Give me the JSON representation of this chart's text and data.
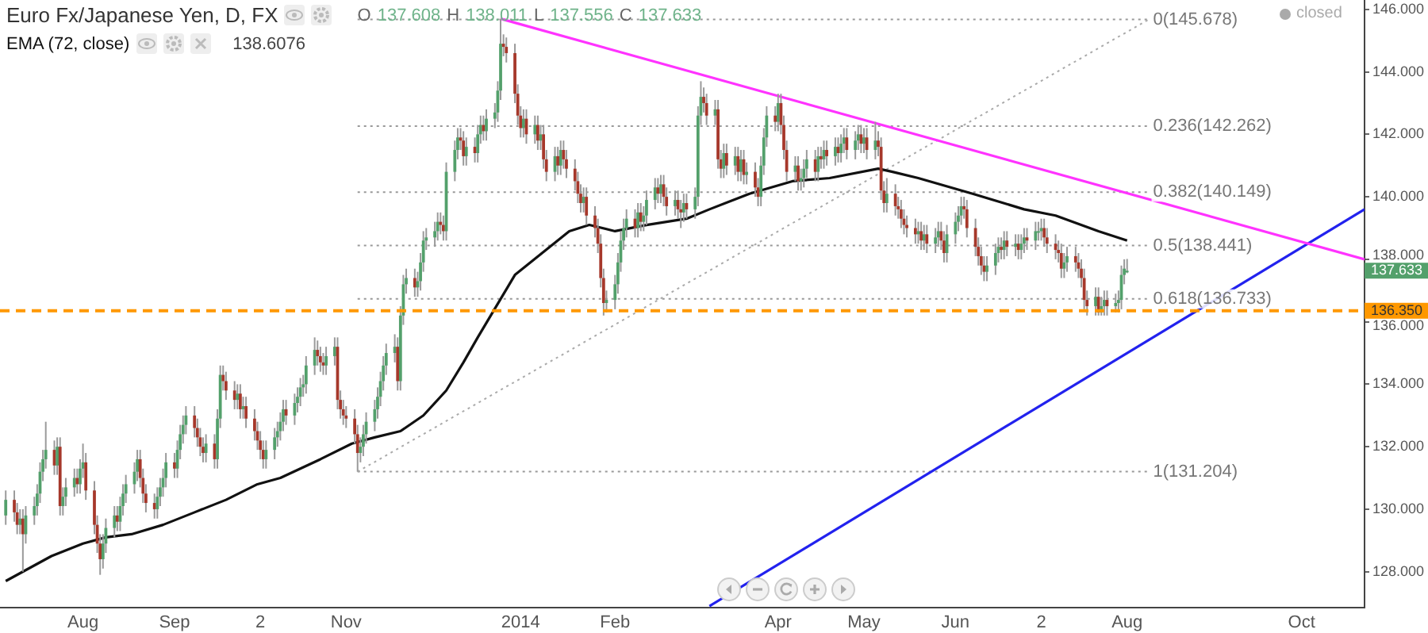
{
  "chart_data": {
    "type": "candlestick",
    "title": "Euro Fx/Japanese Yen, D, FX",
    "subtitle": "O 137.608 H 138.011 L 137.556 C 137.633",
    "annotations": [
      "138.6076",
      "closed",
      "137.633"
    ],
    "legend": "top left",
    "x": [
      "2013-07-05",
      "2013-07-08",
      "2013-07-09",
      "2013-07-10",
      "2013-07-11",
      "2013-07-12",
      "2013-07-15",
      "2013-07-16",
      "2013-07-17",
      "2013-07-18",
      "2013-07-19",
      "2013-07-22",
      "2013-07-23",
      "2013-07-24",
      "2013-07-25",
      "2013-07-26",
      "2013-07-29",
      "2013-07-30",
      "2013-07-31",
      "2013-08-01",
      "2013-08-02",
      "2013-08-05",
      "2013-08-06",
      "2013-08-07",
      "2013-08-08",
      "2013-08-09",
      "2013-08-12",
      "2013-08-13",
      "2013-08-14",
      "2013-08-15",
      "2013-08-16",
      "2013-08-19",
      "2013-08-20",
      "2013-08-21",
      "2013-08-22",
      "2013-08-23",
      "2013-08-26",
      "2013-08-27",
      "2013-08-28",
      "2013-08-29",
      "2013-08-30",
      "2013-09-02",
      "2013-09-03",
      "2013-09-04",
      "2013-09-05",
      "2013-09-06",
      "2013-09-09",
      "2013-09-10",
      "2013-09-11",
      "2013-09-12",
      "2013-09-13",
      "2013-09-16",
      "2013-09-17",
      "2013-09-18",
      "2013-09-19",
      "2013-09-20",
      "2013-09-23",
      "2013-09-24",
      "2013-09-25",
      "2013-09-26",
      "2013-09-27",
      "2013-09-30",
      "2013-10-01",
      "2013-10-02",
      "2013-10-03",
      "2013-10-04",
      "2013-10-07",
      "2013-10-08",
      "2013-10-09",
      "2013-10-10",
      "2013-10-11",
      "2013-10-14",
      "2013-10-15",
      "2013-10-16",
      "2013-10-17",
      "2013-10-18",
      "2013-10-21",
      "2013-10-22",
      "2013-10-23",
      "2013-10-24",
      "2013-10-25",
      "2013-10-28",
      "2013-10-29",
      "2013-10-30",
      "2013-10-31",
      "2013-11-01",
      "2013-11-04",
      "2013-11-05",
      "2013-11-06",
      "2013-11-07",
      "2013-11-08",
      "2013-11-11",
      "2013-11-12",
      "2013-11-13",
      "2013-11-14",
      "2013-11-15",
      "2013-11-18",
      "2013-11-19",
      "2013-11-20",
      "2013-11-21",
      "2013-11-22",
      "2013-11-25",
      "2013-11-26",
      "2013-11-27",
      "2013-11-28",
      "2013-11-29",
      "2013-12-02",
      "2013-12-03",
      "2013-12-04",
      "2013-12-05",
      "2013-12-06",
      "2013-12-09",
      "2013-12-10",
      "2013-12-11",
      "2013-12-12",
      "2013-12-13",
      "2013-12-16",
      "2013-12-17",
      "2013-12-18",
      "2013-12-19",
      "2013-12-20",
      "2013-12-23",
      "2013-12-24",
      "2013-12-25",
      "2013-12-26",
      "2013-12-27",
      "2013-12-30",
      "2013-12-31",
      "2014-01-01",
      "2014-01-02",
      "2014-01-03",
      "2014-01-06",
      "2014-01-07",
      "2014-01-08",
      "2014-01-09",
      "2014-01-10",
      "2014-01-13",
      "2014-01-14",
      "2014-01-15",
      "2014-01-16",
      "2014-01-17",
      "2014-01-20",
      "2014-01-21",
      "2014-01-22",
      "2014-01-23",
      "2014-01-24",
      "2014-01-27",
      "2014-01-28",
      "2014-01-29",
      "2014-01-30",
      "2014-01-31",
      "2014-02-03",
      "2014-02-04",
      "2014-02-05",
      "2014-02-06",
      "2014-02-07",
      "2014-02-10",
      "2014-02-11",
      "2014-02-12",
      "2014-02-13",
      "2014-02-14",
      "2014-02-17",
      "2014-02-18",
      "2014-02-19",
      "2014-02-20",
      "2014-02-21",
      "2014-02-24",
      "2014-02-25",
      "2014-02-26",
      "2014-02-27",
      "2014-02-28",
      "2014-03-03",
      "2014-03-04",
      "2014-03-05",
      "2014-03-06",
      "2014-03-07",
      "2014-03-10",
      "2014-03-11",
      "2014-03-12",
      "2014-03-13",
      "2014-03-14",
      "2014-03-17",
      "2014-03-18",
      "2014-03-19",
      "2014-03-20",
      "2014-03-21",
      "2014-03-24",
      "2014-03-25",
      "2014-03-26",
      "2014-03-27",
      "2014-03-28",
      "2014-03-31",
      "2014-04-01",
      "2014-04-02",
      "2014-04-03",
      "2014-04-04",
      "2014-04-07",
      "2014-04-08",
      "2014-04-09",
      "2014-04-10",
      "2014-04-11",
      "2014-04-14",
      "2014-04-15",
      "2014-04-16",
      "2014-04-17",
      "2014-04-18",
      "2014-04-21",
      "2014-04-22",
      "2014-04-23",
      "2014-04-24",
      "2014-04-25",
      "2014-04-28",
      "2014-04-29",
      "2014-04-30",
      "2014-05-01",
      "2014-05-02",
      "2014-05-05",
      "2014-05-06",
      "2014-05-07",
      "2014-05-08",
      "2014-05-09",
      "2014-05-12",
      "2014-05-13",
      "2014-05-14",
      "2014-05-15",
      "2014-05-16",
      "2014-05-19",
      "2014-05-20",
      "2014-05-21",
      "2014-05-22",
      "2014-05-23",
      "2014-05-26",
      "2014-05-27",
      "2014-05-28",
      "2014-05-29",
      "2014-05-30",
      "2014-06-02",
      "2014-06-03",
      "2014-06-04",
      "2014-06-05",
      "2014-06-06",
      "2014-06-09",
      "2014-06-10",
      "2014-06-11",
      "2014-06-12",
      "2014-06-13",
      "2014-06-16",
      "2014-06-17",
      "2014-06-18",
      "2014-06-19",
      "2014-06-20",
      "2014-06-23",
      "2014-06-24",
      "2014-06-25",
      "2014-06-26",
      "2014-06-27",
      "2014-06-30",
      "2014-07-01",
      "2014-07-02",
      "2014-07-03",
      "2014-07-04",
      "2014-07-07",
      "2014-07-08",
      "2014-07-09",
      "2014-07-10",
      "2014-07-11",
      "2014-07-14",
      "2014-07-15",
      "2014-07-16",
      "2014-07-17",
      "2014-07-18",
      "2014-07-21",
      "2014-07-22",
      "2014-07-23",
      "2014-07-24",
      "2014-07-25",
      "2014-07-28",
      "2014-07-29",
      "2014-07-30",
      "2014-07-31",
      "2014-08-01"
    ],
    "ohlc": [
      [
        129.8,
        130.6,
        129.5,
        130.3
      ],
      [
        130.3,
        130.6,
        129.6,
        129.9
      ],
      [
        129.9,
        130.2,
        129.2,
        129.5
      ],
      [
        129.5,
        130.0,
        129.2,
        129.7
      ],
      [
        129.7,
        130.0,
        128.0,
        129.2
      ],
      [
        129.2,
        130.1,
        128.9,
        129.8
      ],
      [
        129.8,
        130.4,
        129.5,
        130.1
      ],
      [
        130.1,
        130.8,
        129.8,
        130.5
      ],
      [
        130.5,
        131.5,
        130.2,
        131.2
      ],
      [
        131.2,
        131.9,
        130.9,
        131.6
      ],
      [
        131.6,
        132.8,
        131.3,
        131.9
      ],
      [
        131.9,
        132.2,
        131.1,
        131.4
      ],
      [
        131.4,
        132.3,
        131.1,
        132.0
      ],
      [
        132.0,
        132.3,
        129.8,
        130.1
      ],
      [
        130.1,
        130.7,
        129.8,
        130.4
      ],
      [
        130.4,
        131.0,
        130.1,
        130.7
      ],
      [
        130.7,
        131.3,
        130.4,
        131.0
      ],
      [
        131.0,
        131.3,
        130.5,
        130.8
      ],
      [
        130.8,
        131.6,
        130.5,
        131.3
      ],
      [
        131.3,
        132.1,
        131.0,
        131.5
      ],
      [
        131.5,
        131.8,
        130.3,
        130.6
      ],
      [
        130.6,
        130.9,
        129.2,
        129.5
      ],
      [
        129.5,
        129.8,
        128.6,
        128.9
      ],
      [
        128.9,
        129.2,
        127.9,
        128.4
      ],
      [
        128.4,
        129.2,
        128.1,
        128.9
      ],
      [
        128.9,
        129.7,
        128.6,
        129.4
      ],
      [
        129.4,
        130.1,
        129.1,
        129.8
      ],
      [
        129.8,
        130.1,
        129.3,
        129.6
      ],
      [
        129.6,
        130.4,
        129.3,
        130.1
      ],
      [
        130.1,
        130.8,
        129.8,
        130.5
      ],
      [
        130.5,
        131.1,
        130.2,
        130.8
      ],
      [
        130.8,
        131.5,
        130.5,
        131.2
      ],
      [
        131.2,
        131.9,
        130.9,
        131.6
      ],
      [
        131.6,
        131.9,
        130.7,
        131.0
      ],
      [
        131.0,
        131.3,
        130.2,
        130.5
      ],
      [
        130.5,
        130.8,
        129.9,
        130.2
      ],
      [
        130.2,
        130.5,
        129.7,
        130.0
      ],
      [
        130.0,
        130.7,
        129.7,
        130.4
      ],
      [
        130.4,
        131.0,
        130.1,
        130.7
      ],
      [
        130.7,
        131.3,
        130.4,
        131.0
      ],
      [
        131.0,
        131.8,
        130.7,
        131.5
      ],
      [
        131.5,
        131.8,
        131.0,
        131.3
      ],
      [
        131.3,
        132.2,
        131.0,
        131.9
      ],
      [
        131.9,
        132.7,
        131.6,
        132.4
      ],
      [
        132.4,
        133.0,
        132.1,
        132.7
      ],
      [
        132.7,
        133.3,
        132.4,
        133.0
      ],
      [
        133.0,
        133.3,
        132.3,
        132.6
      ],
      [
        132.6,
        132.9,
        132.0,
        132.3
      ],
      [
        132.3,
        132.6,
        131.7,
        132.0
      ],
      [
        132.0,
        132.3,
        131.5,
        131.8
      ],
      [
        131.8,
        132.4,
        131.5,
        132.1
      ],
      [
        132.1,
        132.4,
        131.3,
        131.6
      ],
      [
        131.6,
        133.2,
        131.3,
        132.9
      ],
      [
        132.9,
        134.6,
        132.6,
        134.3
      ],
      [
        134.3,
        134.6,
        133.8,
        134.1
      ],
      [
        134.1,
        134.4,
        133.5,
        133.8
      ],
      [
        133.8,
        134.1,
        133.2,
        133.5
      ],
      [
        133.5,
        134.0,
        133.2,
        133.7
      ],
      [
        133.7,
        134.0,
        132.9,
        133.2
      ],
      [
        133.2,
        133.6,
        132.9,
        133.3
      ],
      [
        133.3,
        133.6,
        132.6,
        132.9
      ],
      [
        132.9,
        133.2,
        132.2,
        132.5
      ],
      [
        132.5,
        132.8,
        131.9,
        132.2
      ],
      [
        132.2,
        132.5,
        131.6,
        131.9
      ],
      [
        131.9,
        132.2,
        131.3,
        131.6
      ],
      [
        131.6,
        132.2,
        131.3,
        131.9
      ],
      [
        131.9,
        132.6,
        131.6,
        132.3
      ],
      [
        132.3,
        132.8,
        132.0,
        132.5
      ],
      [
        132.5,
        133.1,
        132.2,
        132.8
      ],
      [
        132.8,
        133.5,
        132.5,
        133.2
      ],
      [
        133.2,
        133.5,
        132.7,
        133.0
      ],
      [
        133.0,
        133.7,
        132.7,
        133.4
      ],
      [
        133.4,
        133.9,
        133.1,
        133.6
      ],
      [
        133.6,
        134.2,
        133.3,
        133.9
      ],
      [
        133.9,
        134.3,
        133.6,
        134.0
      ],
      [
        134.0,
        134.9,
        133.7,
        134.6
      ],
      [
        134.6,
        135.5,
        134.3,
        135.1
      ],
      [
        135.1,
        135.4,
        134.6,
        134.9
      ],
      [
        134.9,
        135.2,
        134.4,
        134.7
      ],
      [
        134.7,
        135.0,
        134.3,
        134.6
      ],
      [
        134.6,
        135.2,
        134.3,
        134.9
      ],
      [
        134.9,
        135.5,
        134.6,
        135.2
      ],
      [
        135.2,
        135.5,
        133.2,
        133.5
      ],
      [
        133.5,
        133.8,
        132.9,
        133.2
      ],
      [
        133.2,
        133.5,
        132.7,
        133.0
      ],
      [
        133.0,
        133.3,
        132.6,
        132.9
      ],
      [
        132.9,
        133.2,
        132.1,
        132.4
      ],
      [
        132.4,
        132.7,
        131.2,
        131.8
      ],
      [
        131.8,
        132.3,
        131.5,
        132.0
      ],
      [
        132.0,
        132.7,
        131.7,
        132.4
      ],
      [
        132.4,
        133.1,
        132.1,
        132.8
      ],
      [
        132.8,
        133.5,
        132.5,
        133.2
      ],
      [
        133.2,
        133.9,
        132.9,
        133.6
      ],
      [
        133.6,
        134.4,
        133.3,
        134.1
      ],
      [
        134.1,
        134.9,
        133.8,
        134.6
      ],
      [
        134.6,
        135.3,
        134.3,
        135.0
      ],
      [
        135.0,
        135.6,
        134.7,
        135.2
      ],
      [
        135.2,
        135.5,
        133.8,
        134.1
      ],
      [
        134.1,
        136.5,
        133.8,
        136.2
      ],
      [
        136.2,
        137.5,
        135.9,
        137.2
      ],
      [
        137.2,
        137.7,
        136.9,
        137.4
      ],
      [
        137.4,
        137.7,
        136.8,
        137.1
      ],
      [
        137.1,
        137.6,
        136.8,
        137.3
      ],
      [
        137.3,
        138.2,
        137.0,
        137.9
      ],
      [
        137.9,
        138.9,
        137.6,
        138.6
      ],
      [
        138.6,
        139.0,
        138.3,
        138.7
      ],
      [
        138.7,
        139.2,
        138.4,
        138.9
      ],
      [
        138.9,
        139.5,
        138.6,
        139.2
      ],
      [
        139.2,
        139.5,
        138.8,
        139.1
      ],
      [
        139.1,
        139.4,
        138.6,
        138.9
      ],
      [
        138.9,
        141.1,
        138.6,
        140.8
      ],
      [
        140.8,
        141.8,
        140.5,
        141.5
      ],
      [
        141.5,
        142.2,
        141.2,
        141.9
      ],
      [
        141.9,
        142.2,
        141.5,
        141.8
      ],
      [
        141.8,
        142.1,
        141.0,
        141.3
      ],
      [
        141.3,
        141.9,
        141.0,
        141.6
      ],
      [
        141.6,
        141.9,
        141.1,
        141.4
      ],
      [
        141.4,
        142.3,
        141.1,
        142.0
      ],
      [
        142.0,
        142.6,
        141.7,
        142.3
      ],
      [
        142.3,
        142.6,
        141.8,
        142.1
      ],
      [
        142.1,
        142.8,
        141.8,
        142.5
      ],
      [
        142.5,
        143.0,
        142.2,
        142.7
      ],
      [
        142.7,
        143.7,
        142.4,
        143.4
      ],
      [
        143.4,
        145.7,
        143.1,
        144.9
      ],
      [
        144.9,
        145.2,
        144.5,
        144.8
      ],
      [
        144.8,
        145.1,
        144.3,
        144.6
      ],
      [
        144.6,
        144.9,
        143.0,
        143.3
      ],
      [
        143.3,
        143.6,
        142.3,
        142.6
      ],
      [
        142.6,
        142.9,
        141.9,
        142.2
      ],
      [
        142.2,
        142.8,
        141.9,
        142.5
      ],
      [
        142.5,
        142.8,
        141.7,
        142.0
      ],
      [
        142.0,
        142.6,
        141.7,
        142.3
      ],
      [
        142.3,
        142.6,
        141.5,
        141.8
      ],
      [
        141.8,
        142.3,
        141.5,
        142.0
      ],
      [
        142.0,
        142.3,
        140.9,
        141.2
      ],
      [
        141.2,
        141.5,
        140.5,
        140.8
      ],
      [
        140.8,
        141.6,
        140.5,
        141.3
      ],
      [
        141.3,
        141.6,
        140.7,
        141.0
      ],
      [
        141.0,
        141.8,
        140.7,
        141.5
      ],
      [
        141.5,
        141.8,
        140.9,
        141.2
      ],
      [
        141.2,
        141.5,
        140.6,
        140.9
      ],
      [
        140.9,
        141.2,
        140.2,
        140.5
      ],
      [
        140.5,
        140.8,
        139.8,
        140.1
      ],
      [
        140.1,
        140.4,
        139.5,
        139.8
      ],
      [
        139.8,
        140.3,
        139.5,
        140.0
      ],
      [
        140.0,
        140.3,
        139.1,
        139.4
      ],
      [
        139.4,
        139.7,
        138.7,
        139.0
      ],
      [
        139.0,
        139.3,
        138.2,
        138.5
      ],
      [
        138.5,
        138.8,
        137.1,
        137.4
      ],
      [
        137.4,
        137.7,
        136.2,
        136.6
      ],
      [
        136.6,
        137.0,
        136.3,
        136.7
      ],
      [
        136.7,
        137.5,
        136.4,
        137.2
      ],
      [
        137.2,
        138.2,
        136.9,
        137.9
      ],
      [
        137.9,
        138.9,
        137.6,
        138.6
      ],
      [
        138.6,
        139.3,
        138.3,
        139.0
      ],
      [
        139.0,
        139.6,
        138.7,
        139.3
      ],
      [
        139.3,
        139.6,
        138.7,
        139.0
      ],
      [
        139.0,
        139.8,
        138.7,
        139.5
      ],
      [
        139.5,
        139.8,
        138.9,
        139.2
      ],
      [
        139.2,
        139.7,
        138.9,
        139.4
      ],
      [
        139.4,
        140.2,
        139.1,
        139.9
      ],
      [
        139.9,
        140.6,
        139.6,
        140.3
      ],
      [
        140.3,
        140.6,
        139.8,
        140.1
      ],
      [
        140.1,
        140.7,
        139.8,
        140.4
      ],
      [
        140.4,
        140.7,
        139.7,
        140.0
      ],
      [
        140.0,
        140.3,
        139.4,
        139.7
      ],
      [
        139.7,
        140.2,
        139.4,
        139.9
      ],
      [
        139.9,
        140.2,
        139.3,
        139.6
      ],
      [
        139.6,
        139.9,
        139.0,
        139.5
      ],
      [
        139.5,
        140.1,
        139.2,
        139.8
      ],
      [
        139.8,
        140.1,
        139.3,
        139.6
      ],
      [
        139.6,
        140.3,
        139.3,
        140.0
      ],
      [
        140.0,
        142.9,
        139.7,
        142.6
      ],
      [
        142.6,
        143.7,
        142.3,
        143.2
      ],
      [
        143.2,
        143.5,
        142.7,
        143.0
      ],
      [
        143.0,
        143.3,
        142.3,
        142.6
      ],
      [
        142.6,
        143.1,
        142.3,
        142.8
      ],
      [
        142.8,
        143.1,
        140.9,
        141.2
      ],
      [
        141.2,
        141.5,
        140.6,
        140.9
      ],
      [
        140.9,
        141.7,
        140.6,
        141.4
      ],
      [
        141.4,
        141.7,
        140.7,
        141.0
      ],
      [
        141.0,
        141.6,
        140.7,
        141.3
      ],
      [
        141.3,
        141.6,
        140.5,
        140.8
      ],
      [
        140.8,
        141.5,
        140.5,
        141.2
      ],
      [
        141.2,
        141.5,
        140.4,
        140.7
      ],
      [
        140.7,
        141.1,
        140.4,
        140.8
      ],
      [
        140.8,
        141.1,
        140.0,
        140.3
      ],
      [
        140.3,
        140.6,
        139.7,
        140.0
      ],
      [
        140.0,
        141.3,
        139.7,
        141.0
      ],
      [
        141.0,
        142.2,
        140.7,
        141.9
      ],
      [
        141.9,
        142.9,
        141.6,
        142.6
      ],
      [
        142.6,
        142.9,
        142.1,
        142.4
      ],
      [
        142.4,
        143.3,
        142.1,
        143.0
      ],
      [
        143.0,
        143.3,
        142.0,
        142.3
      ],
      [
        142.3,
        142.6,
        141.2,
        141.5
      ],
      [
        141.5,
        141.8,
        140.5,
        140.8
      ],
      [
        140.8,
        141.3,
        140.5,
        141.0
      ],
      [
        141.0,
        141.3,
        140.2,
        140.5
      ],
      [
        140.5,
        140.9,
        140.2,
        140.6
      ],
      [
        140.6,
        141.2,
        140.3,
        140.9
      ],
      [
        140.9,
        141.5,
        140.6,
        141.2
      ],
      [
        141.2,
        141.5,
        140.5,
        140.8
      ],
      [
        140.8,
        141.6,
        140.5,
        141.3
      ],
      [
        141.3,
        141.6,
        140.9,
        141.2
      ],
      [
        141.2,
        141.8,
        140.9,
        141.5
      ],
      [
        141.5,
        141.8,
        141.0,
        141.3
      ],
      [
        141.3,
        141.9,
        141.0,
        141.6
      ],
      [
        141.6,
        141.9,
        141.1,
        141.4
      ],
      [
        141.4,
        142.0,
        141.1,
        141.7
      ],
      [
        141.7,
        142.2,
        141.4,
        141.9
      ],
      [
        141.9,
        142.2,
        141.2,
        141.5
      ],
      [
        141.5,
        142.1,
        141.2,
        141.8
      ],
      [
        141.8,
        142.3,
        141.5,
        142.0
      ],
      [
        142.0,
        142.3,
        141.4,
        141.7
      ],
      [
        141.7,
        142.2,
        141.4,
        141.9
      ],
      [
        141.9,
        142.2,
        141.2,
        141.5
      ],
      [
        141.5,
        142.4,
        141.2,
        141.8
      ],
      [
        141.8,
        142.1,
        141.3,
        141.6
      ],
      [
        141.6,
        141.9,
        139.9,
        140.2
      ],
      [
        140.2,
        140.5,
        139.5,
        139.8
      ],
      [
        139.8,
        140.6,
        139.5,
        140.1
      ],
      [
        140.1,
        140.4,
        139.4,
        139.7
      ],
      [
        139.7,
        140.0,
        139.3,
        139.6
      ],
      [
        139.6,
        139.9,
        139.0,
        139.3
      ],
      [
        139.3,
        139.6,
        138.8,
        139.1
      ],
      [
        139.1,
        139.4,
        138.7,
        139.0
      ],
      [
        139.0,
        139.3,
        138.5,
        138.8
      ],
      [
        138.8,
        139.2,
        138.5,
        138.9
      ],
      [
        138.9,
        139.2,
        138.3,
        138.6
      ],
      [
        138.6,
        139.1,
        138.3,
        138.8
      ],
      [
        138.8,
        139.1,
        138.2,
        138.5
      ],
      [
        138.5,
        139.0,
        138.2,
        138.7
      ],
      [
        138.7,
        139.2,
        138.4,
        138.9
      ],
      [
        138.9,
        139.2,
        138.3,
        138.6
      ],
      [
        138.6,
        138.9,
        137.9,
        138.2
      ],
      [
        138.2,
        139.1,
        137.9,
        138.8
      ],
      [
        138.8,
        139.5,
        138.5,
        139.2
      ],
      [
        139.2,
        139.7,
        138.9,
        139.4
      ],
      [
        139.4,
        140.0,
        139.1,
        139.7
      ],
      [
        139.7,
        140.0,
        139.3,
        139.6
      ],
      [
        139.6,
        139.9,
        138.7,
        139.0
      ],
      [
        139.0,
        139.3,
        138.1,
        138.4
      ],
      [
        138.4,
        138.7,
        137.8,
        138.1
      ],
      [
        138.1,
        138.4,
        137.5,
        137.8
      ],
      [
        137.8,
        138.1,
        137.3,
        137.6
      ],
      [
        137.6,
        138.1,
        137.3,
        137.8
      ],
      [
        137.8,
        138.5,
        137.5,
        138.2
      ],
      [
        138.2,
        138.7,
        137.9,
        138.4
      ],
      [
        138.4,
        138.7,
        138.0,
        138.3
      ],
      [
        138.3,
        138.9,
        138.0,
        138.6
      ],
      [
        138.6,
        138.9,
        138.1,
        138.4
      ],
      [
        138.4,
        138.8,
        138.1,
        138.5
      ],
      [
        138.5,
        138.8,
        138.0,
        138.3
      ],
      [
        138.3,
        138.8,
        138.0,
        138.5
      ],
      [
        138.5,
        139.0,
        138.2,
        138.7
      ],
      [
        138.7,
        139.0,
        138.3,
        138.6
      ],
      [
        138.6,
        139.2,
        138.3,
        138.9
      ],
      [
        138.9,
        139.2,
        138.6,
        138.9
      ],
      [
        138.9,
        139.3,
        138.6,
        139.0
      ],
      [
        139.0,
        139.3,
        138.4,
        138.7
      ],
      [
        138.7,
        139.0,
        138.2,
        138.5
      ],
      [
        138.5,
        138.8,
        138.0,
        138.3
      ],
      [
        138.3,
        138.6,
        137.9,
        138.2
      ],
      [
        138.2,
        138.5,
        137.4,
        137.7
      ],
      [
        137.7,
        138.2,
        137.4,
        137.9
      ],
      [
        137.9,
        138.4,
        137.6,
        138.1
      ],
      [
        138.1,
        138.4,
        137.6,
        137.9
      ],
      [
        137.9,
        138.2,
        137.4,
        137.7
      ],
      [
        137.7,
        138.0,
        137.1,
        137.4
      ],
      [
        137.4,
        137.7,
        136.4,
        136.7
      ],
      [
        136.7,
        137.0,
        136.2,
        136.5
      ],
      [
        136.5,
        137.1,
        136.2,
        136.8
      ],
      [
        136.8,
        137.1,
        136.2,
        136.3
      ],
      [
        136.3,
        136.8,
        136.2,
        136.5
      ],
      [
        136.5,
        137.0,
        136.2,
        136.7
      ],
      [
        136.7,
        137.0,
        136.2,
        136.5
      ],
      [
        136.5,
        136.9,
        136.3,
        136.6
      ],
      [
        136.6,
        137.0,
        136.3,
        136.7
      ],
      [
        136.7,
        137.8,
        136.4,
        137.5
      ],
      [
        137.5,
        138.0,
        137.2,
        137.7
      ],
      [
        137.608,
        138.011,
        137.556,
        137.633
      ]
    ],
    "series": [
      {
        "name": "EMA (72, close)",
        "type": "line",
        "color": "#111111",
        "x": [
          "2013-07-05",
          "2013-07-21",
          "2013-08-01",
          "2013-08-09",
          "2013-08-18",
          "2013-08-29",
          "2013-09-09",
          "2013-09-20",
          "2013-10-01",
          "2013-10-09",
          "2013-10-23",
          "2013-11-03",
          "2013-11-11",
          "2013-11-20",
          "2013-11-28",
          "2013-12-06",
          "2013-12-12",
          "2013-12-17",
          "2013-12-30",
          "2014-01-18",
          "2014-01-25",
          "2014-02-03",
          "2014-02-14",
          "2014-02-28",
          "2014-03-08",
          "2014-03-22",
          "2014-04-06",
          "2014-04-19",
          "2014-05-06",
          "2014-05-11",
          "2014-05-20",
          "2014-06-08",
          "2014-06-26",
          "2014-07-07",
          "2014-07-22",
          "2014-08-01"
        ],
        "values": [
          127.7,
          128.5,
          128.9,
          129.1,
          129.2,
          129.5,
          129.9,
          130.3,
          130.8,
          131.0,
          131.6,
          132.1,
          132.3,
          132.5,
          133.0,
          133.8,
          134.7,
          135.5,
          137.5,
          138.9,
          139.1,
          138.9,
          139.1,
          139.3,
          139.6,
          140.1,
          140.5,
          140.6,
          140.9,
          140.8,
          140.6,
          140.1,
          139.6,
          139.4,
          138.9,
          138.6
        ]
      },
      {
        "type": "line",
        "color": "#ff33ff",
        "x": [
          "2013-12-25",
          "2014-10-23"
        ],
        "values": [
          145.7,
          138.0
        ]
      },
      {
        "type": "line",
        "color": "#2222ee",
        "x": [
          "2014-03-08",
          "2014-10-23"
        ],
        "values": [
          126.9,
          139.6
        ]
      },
      {
        "type": "line",
        "color": "#aaaaaa",
        "line_style": "dotted",
        "x": [
          "2013-11-05",
          "2014-08-09"
        ],
        "values": [
          131.2,
          145.7
        ]
      },
      {
        "name": "0(145.678)",
        "type": "line",
        "color": "#999999",
        "line_style": "dotted",
        "x": [
          "2013-11-05",
          "2014-08-09"
        ],
        "values": [
          145.678,
          145.678
        ]
      },
      {
        "name": "0.236(142.262)",
        "type": "line",
        "color": "#999999",
        "line_style": "dotted",
        "x": [
          "2013-11-05",
          "2014-08-09"
        ],
        "values": [
          142.262,
          142.262
        ]
      },
      {
        "name": "0.382(140.149)",
        "type": "line",
        "color": "#999999",
        "line_style": "dotted",
        "x": [
          "2013-11-05",
          "2014-08-09"
        ],
        "values": [
          140.149,
          140.149
        ]
      },
      {
        "name": "0.5(138.441)",
        "type": "line",
        "color": "#999999",
        "line_style": "dotted",
        "x": [
          "2013-11-05",
          "2014-08-09"
        ],
        "values": [
          138.441,
          138.441
        ]
      },
      {
        "name": "0.618(136.733)",
        "type": "line",
        "color": "#999999",
        "line_style": "dotted",
        "x": [
          "2013-11-05",
          "2014-08-09"
        ],
        "values": [
          136.733,
          136.733
        ]
      },
      {
        "name": "1(131.204)",
        "type": "line",
        "color": "#999999",
        "line_style": "dotted",
        "x": [
          "2013-11-05",
          "2014-08-09"
        ],
        "values": [
          131.204,
          131.204
        ]
      }
    ],
    "ref_lines": [
      {
        "axis": "y",
        "value": 136.35,
        "label": "136.350",
        "color": "#ff9800",
        "line_style": "dashed"
      }
    ],
    "xlim": [
      "2013-07-03",
      "2014-10-23"
    ],
    "xticks": [
      {
        "value": "2013-08-01",
        "label": "Aug"
      },
      {
        "value": "2013-09-02",
        "label": "Sep"
      },
      {
        "value": "2013-10-02",
        "label": "2"
      },
      {
        "value": "2013-11-01",
        "label": "Nov"
      },
      {
        "value": "2014-01-01",
        "label": "2014"
      },
      {
        "value": "2014-02-03",
        "label": "Feb"
      },
      {
        "value": "2014-04-01",
        "label": "Apr"
      },
      {
        "value": "2014-05-01",
        "label": "May"
      },
      {
        "value": "2014-06-02",
        "label": "Jun"
      },
      {
        "value": "2014-07-02",
        "label": "2"
      },
      {
        "value": "2014-08-01",
        "label": "Aug"
      },
      {
        "value": "2014-10-01",
        "label": "Oct"
      }
    ],
    "ylim": [
      126.85,
      146.3
    ],
    "yticks": [
      {
        "value": 128,
        "label": "128.000"
      },
      {
        "value": 130,
        "label": "130.000"
      },
      {
        "value": 132,
        "label": "132.000"
      },
      {
        "value": 134,
        "label": "134.000"
      },
      {
        "value": 136,
        "label": "136.000"
      },
      {
        "value": 138,
        "label": "138.000"
      },
      {
        "value": 140,
        "label": "140.000"
      },
      {
        "value": 142,
        "label": "142.000"
      },
      {
        "value": 144,
        "label": "144.000"
      },
      {
        "value": 146,
        "label": "146.000"
      }
    ]
  }
}
